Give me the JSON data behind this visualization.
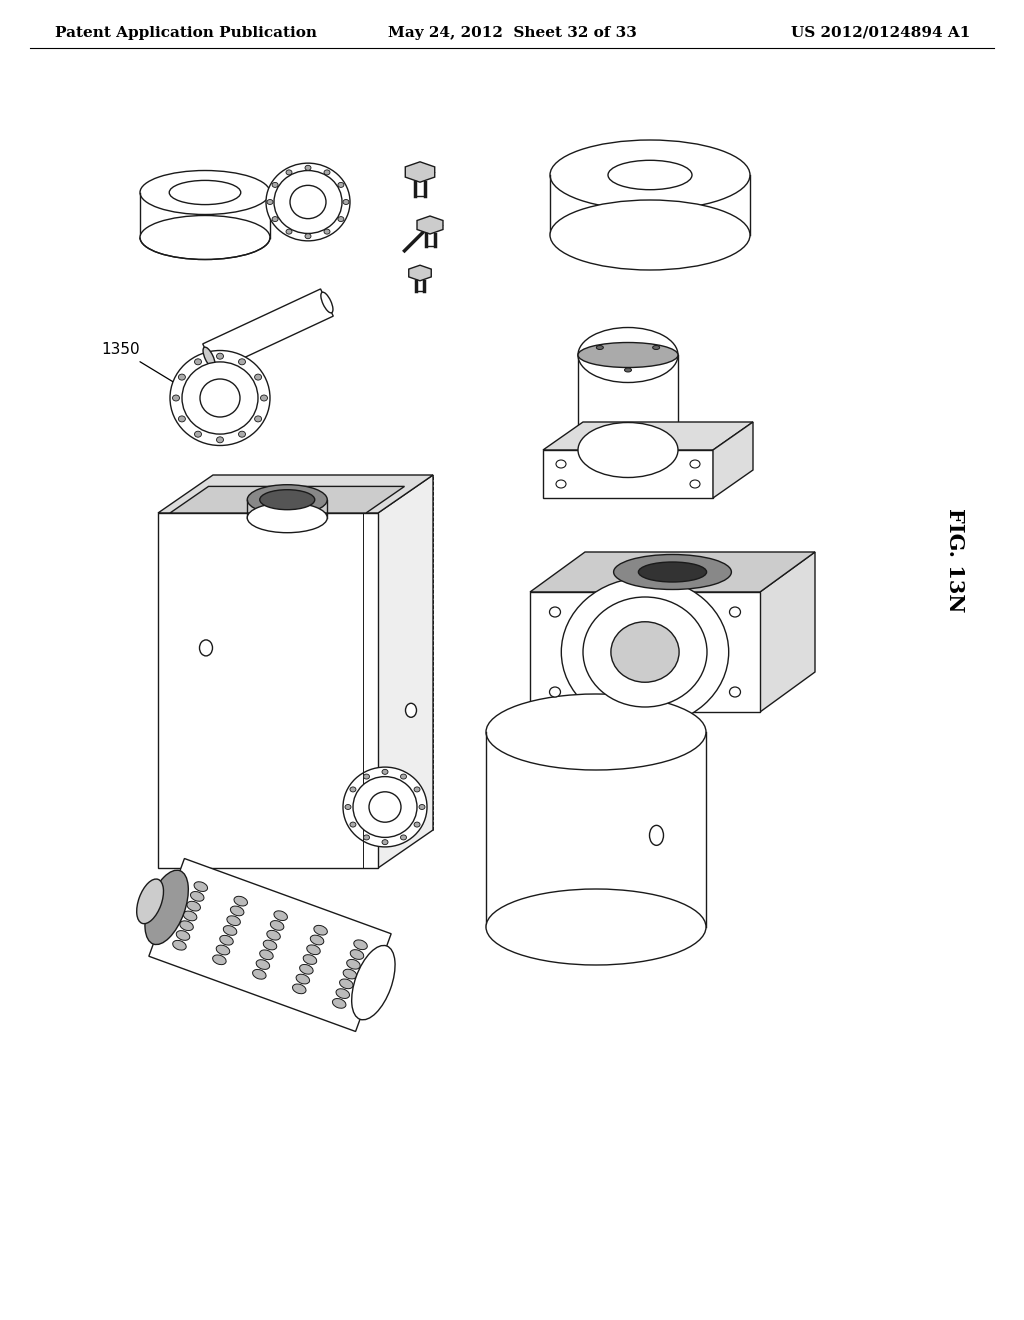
{
  "background_color": "#ffffff",
  "header_left": "Patent Application Publication",
  "header_center": "May 24, 2012  Sheet 32 of 33",
  "header_right": "US 2012/0124894 A1",
  "fig_label": "FIG. 13N",
  "annotation_label": "1350",
  "line_color": "#1a1a1a",
  "header_fontsize": 11,
  "fig_label_fontsize": 14,
  "annotation_fontsize": 11
}
